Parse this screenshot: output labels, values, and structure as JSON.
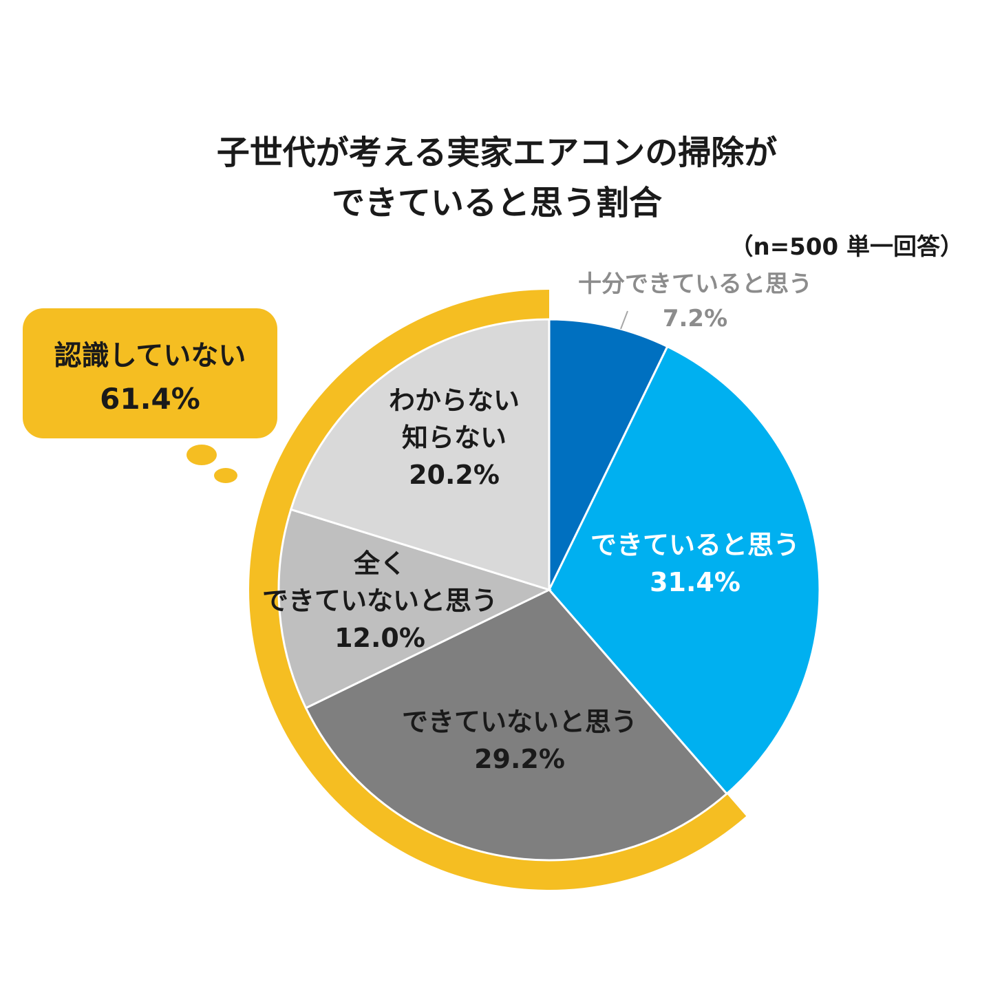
{
  "chart_data": {
    "type": "pie",
    "title_lines": [
      "子世代が考える実家エアコンの掃除が",
      "できていると思う割合"
    ],
    "subtitle": "（n=500 単一回答）",
    "slices": [
      {
        "label_lines": [
          "十分できていると思う"
        ],
        "value": 7.2,
        "value_label": "7.2%",
        "color": "#0070C0"
      },
      {
        "label_lines": [
          "できていると思う"
        ],
        "value": 31.4,
        "value_label": "31.4%",
        "color": "#00B0F0"
      },
      {
        "label_lines": [
          "できていないと思う"
        ],
        "value": 29.2,
        "value_label": "29.2%",
        "color": "#7F7F7F"
      },
      {
        "label_lines": [
          "全く",
          "できていないと思う"
        ],
        "value": 12.0,
        "value_label": "12.0%",
        "color": "#BFBFBF"
      },
      {
        "label_lines": [
          "わからない",
          "知らない"
        ],
        "value": 20.2,
        "value_label": "20.2%",
        "color": "#D9D9D9"
      }
    ],
    "group_annotation": {
      "label": "認識していない",
      "value": 61.4,
      "value_label": "61.4%",
      "covers": [
        "できていないと思う",
        "全く できていないと思う",
        "わからない 知らない"
      ],
      "color": "#F5BE22"
    }
  }
}
